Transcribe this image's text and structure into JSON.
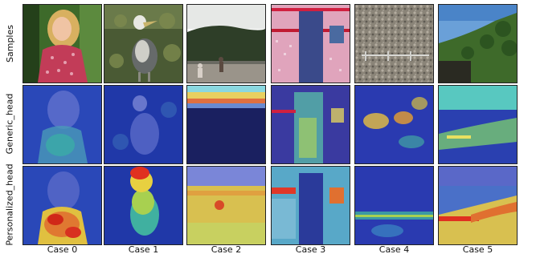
{
  "rows": [
    {
      "label": "Samples",
      "kind": "photo"
    },
    {
      "label": "Generic_head",
      "kind": "heatmap"
    },
    {
      "label": "Personalized_head",
      "kind": "heatmap"
    }
  ],
  "cases": [
    {
      "label": "Case 0",
      "subject": "woman in red patterned top"
    },
    {
      "label": "Case 1",
      "subject": "albatross bird on grass"
    },
    {
      "label": "Case 2",
      "subject": "people running on beach"
    },
    {
      "label": "Case 3",
      "subject": "pink wall with door"
    },
    {
      "label": "Case 4",
      "subject": "pebbles with fence"
    },
    {
      "label": "Case 5",
      "subject": "hillside with trees under sky"
    }
  ],
  "colors": {
    "heat_low": "#2233aa",
    "heat_mid": "#20c0b0",
    "heat_high": "#e03020"
  }
}
